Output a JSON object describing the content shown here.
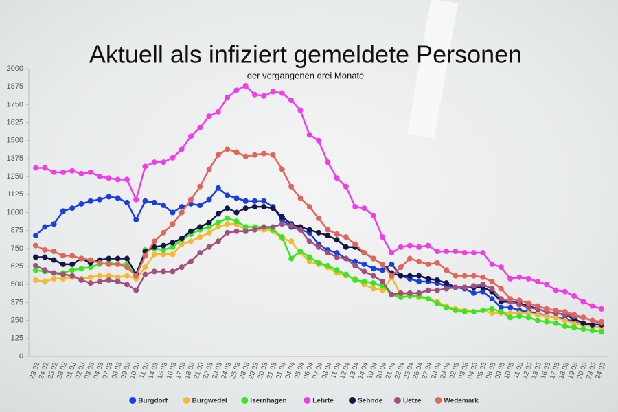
{
  "chart_data": {
    "type": "line",
    "title": "Aktuell als infiziert gemeldete Personen",
    "subtitle": "der vergangenen drei Monate",
    "categories": [
      "23.02",
      "24.02",
      "25.02",
      "28.02",
      "01.03",
      "02.03",
      "03.03",
      "04.03",
      "07.03",
      "08.03",
      "09.03",
      "10.03",
      "11.03",
      "14.03",
      "15.03",
      "16.03",
      "17.03",
      "18.03",
      "21.03",
      "22.03",
      "23.03",
      "24.03",
      "25.03",
      "28.03",
      "29.03",
      "30.03",
      "31.03",
      "01.04",
      "04.04",
      "05.04",
      "06.04",
      "07.04",
      "08.04",
      "11.04",
      "12.04",
      "13.04",
      "14.04",
      "19.04",
      "20.04",
      "21.04",
      "22.04",
      "25.04",
      "26.04",
      "27.04",
      "28.04",
      "29.04",
      "02.05",
      "03.05",
      "04.05",
      "05.05",
      "06.05",
      "09.05",
      "10.05",
      "11.05",
      "12.05",
      "13.05",
      "16.05",
      "17.05",
      "18.05",
      "19.05",
      "20.05",
      "23.05",
      "24.05"
    ],
    "series": [
      {
        "name": "Burgdorf",
        "color": "#1a3fe0",
        "values": [
          840,
          900,
          920,
          1010,
          1030,
          1060,
          1080,
          1090,
          1110,
          1100,
          1070,
          950,
          1080,
          1070,
          1050,
          1000,
          1040,
          1060,
          1050,
          1090,
          1170,
          1120,
          1100,
          1080,
          1080,
          1080,
          1040,
          950,
          900,
          880,
          860,
          780,
          740,
          720,
          680,
          660,
          640,
          610,
          600,
          640,
          560,
          540,
          520,
          520,
          510,
          490,
          480,
          470,
          440,
          450,
          400,
          340,
          340,
          320,
          310,
          300,
          280,
          270,
          260,
          240,
          220,
          210,
          200
        ]
      },
      {
        "name": "Burgwedel",
        "color": "#f5b82e",
        "values": [
          530,
          520,
          540,
          540,
          550,
          540,
          550,
          560,
          560,
          550,
          560,
          540,
          620,
          710,
          710,
          710,
          780,
          800,
          830,
          860,
          900,
          920,
          920,
          880,
          880,
          880,
          870,
          820,
          800,
          720,
          660,
          640,
          620,
          580,
          560,
          540,
          500,
          470,
          460,
          550,
          430,
          430,
          410,
          400,
          380,
          350,
          330,
          320,
          310,
          320,
          300,
          300,
          300,
          300,
          300,
          290,
          280,
          270,
          250,
          230,
          220,
          210,
          200
        ]
      },
      {
        "name": "Isernhagen",
        "color": "#39e61f",
        "values": [
          600,
          590,
          580,
          580,
          600,
          610,
          620,
          640,
          650,
          640,
          640,
          560,
          740,
          750,
          740,
          760,
          810,
          850,
          880,
          900,
          930,
          960,
          940,
          900,
          900,
          900,
          880,
          830,
          680,
          730,
          690,
          650,
          630,
          600,
          570,
          530,
          520,
          510,
          490,
          430,
          410,
          420,
          420,
          400,
          370,
          340,
          320,
          310,
          310,
          320,
          330,
          310,
          270,
          280,
          270,
          250,
          240,
          230,
          210,
          200,
          190,
          180,
          170
        ]
      },
      {
        "name": "Lehrte",
        "color": "#f23ce8",
        "values": [
          1310,
          1310,
          1280,
          1280,
          1290,
          1270,
          1280,
          1250,
          1240,
          1230,
          1230,
          1090,
          1320,
          1350,
          1350,
          1380,
          1440,
          1530,
          1590,
          1670,
          1700,
          1800,
          1850,
          1880,
          1820,
          1810,
          1840,
          1830,
          1780,
          1710,
          1540,
          1500,
          1350,
          1240,
          1180,
          1040,
          1030,
          980,
          830,
          720,
          760,
          770,
          760,
          770,
          730,
          730,
          730,
          720,
          720,
          720,
          640,
          620,
          540,
          550,
          540,
          520,
          500,
          460,
          450,
          420,
          380,
          350,
          330
        ]
      },
      {
        "name": "Sehnde",
        "color": "#14164a",
        "values": [
          690,
          690,
          670,
          640,
          640,
          680,
          650,
          670,
          680,
          680,
          680,
          570,
          730,
          760,
          770,
          790,
          820,
          870,
          900,
          930,
          990,
          1030,
          1000,
          1030,
          1040,
          1040,
          1030,
          970,
          920,
          900,
          880,
          860,
          840,
          810,
          760,
          760,
          720,
          680,
          640,
          580,
          560,
          560,
          560,
          540,
          530,
          510,
          480,
          480,
          480,
          480,
          450,
          380,
          380,
          370,
          350,
          330,
          310,
          300,
          290,
          260,
          230,
          220,
          220
        ]
      },
      {
        "name": "Uetze",
        "color": "#a04f7f",
        "values": [
          630,
          600,
          580,
          570,
          560,
          530,
          510,
          520,
          530,
          520,
          500,
          460,
          570,
          590,
          590,
          590,
          620,
          660,
          720,
          760,
          800,
          860,
          870,
          870,
          880,
          900,
          900,
          920,
          910,
          880,
          800,
          760,
          720,
          690,
          680,
          630,
          590,
          560,
          520,
          430,
          440,
          440,
          440,
          460,
          460,
          470,
          480,
          480,
          490,
          500,
          470,
          400,
          380,
          360,
          340,
          330,
          310,
          300,
          290,
          280,
          270,
          250,
          230
        ]
      },
      {
        "name": "Wedemark",
        "color": "#e0665a",
        "values": [
          770,
          740,
          730,
          700,
          700,
          680,
          670,
          650,
          640,
          640,
          620,
          560,
          700,
          800,
          860,
          920,
          1000,
          1090,
          1180,
          1300,
          1400,
          1440,
          1420,
          1390,
          1400,
          1410,
          1400,
          1300,
          1180,
          1100,
          1040,
          960,
          880,
          850,
          830,
          780,
          720,
          680,
          640,
          560,
          620,
          680,
          660,
          640,
          650,
          600,
          560,
          560,
          560,
          550,
          520,
          470,
          400,
          390,
          370,
          350,
          330,
          320,
          310,
          290,
          270,
          250,
          240
        ]
      }
    ],
    "ylim": [
      0,
      2000
    ],
    "yticks": [
      0,
      125,
      250,
      375,
      500,
      625,
      750,
      875,
      1000,
      1125,
      1250,
      1375,
      1500,
      1625,
      1750,
      1875,
      2000
    ],
    "grid": false,
    "legend": "bottom"
  }
}
